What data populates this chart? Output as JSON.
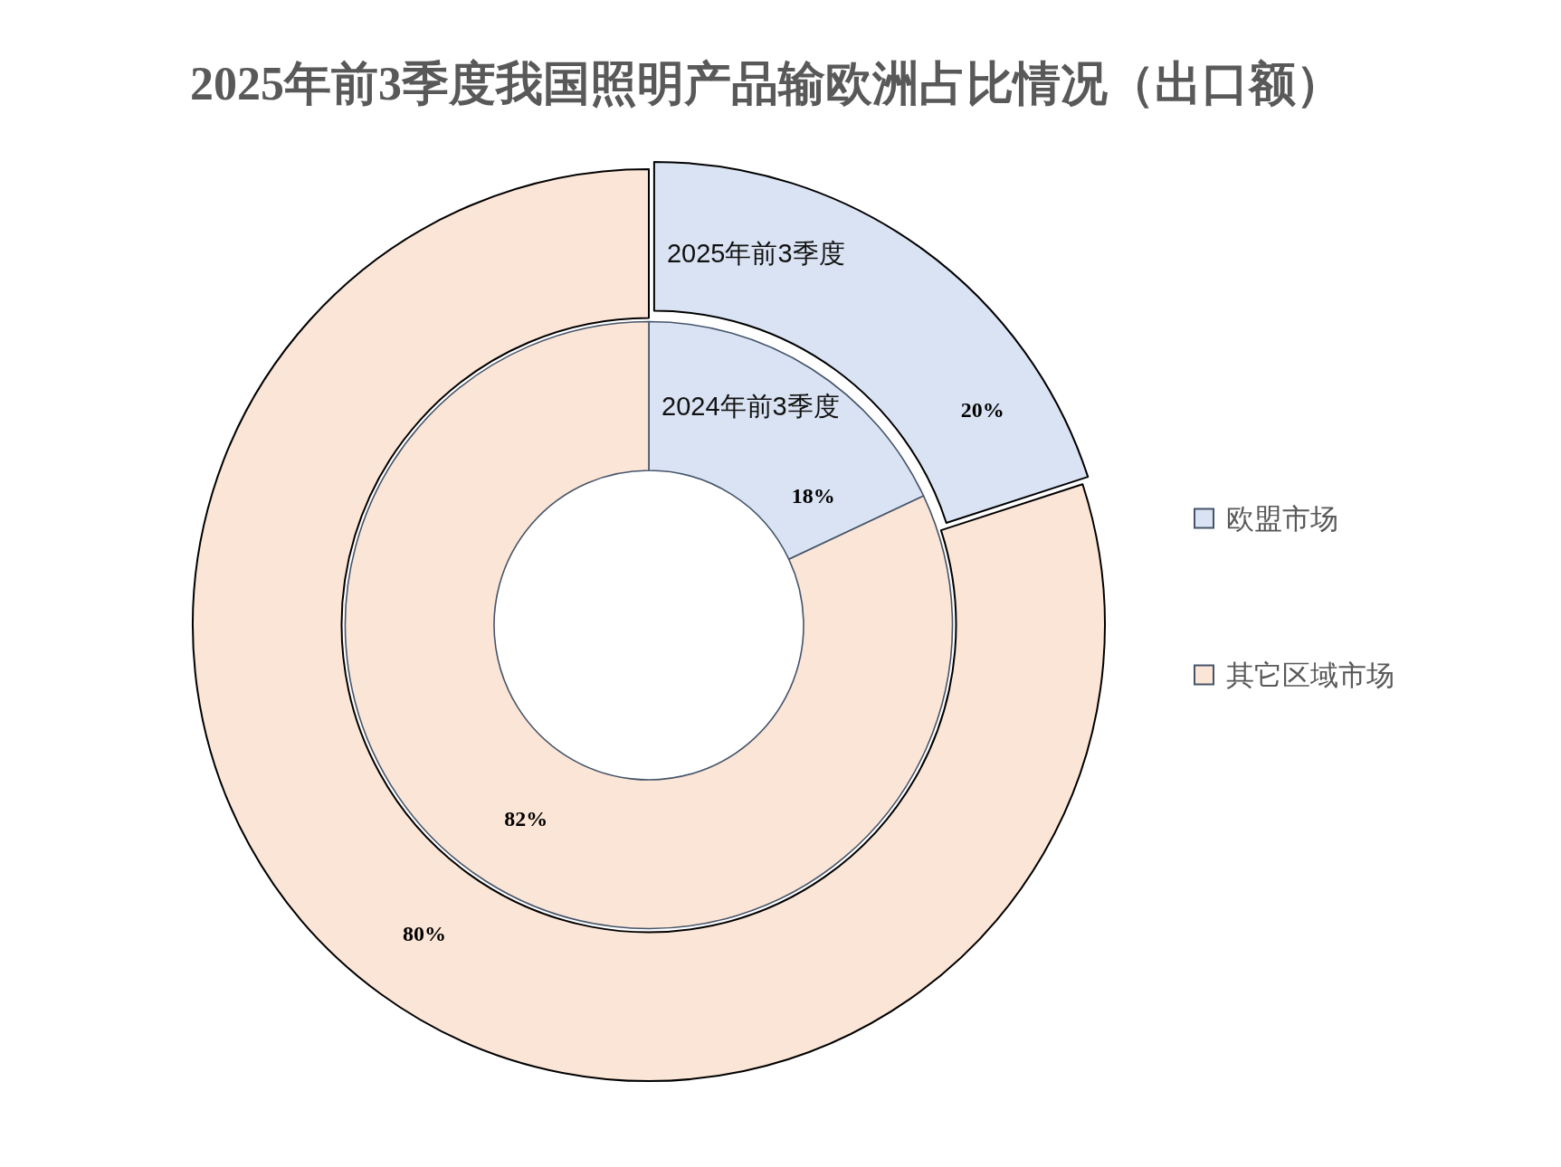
{
  "chart_data": {
    "type": "donut",
    "title": "2025年前3季度我国照明产品输欧洲占比情况（出口额）",
    "categories": [
      "欧盟市场",
      "其它区域市场"
    ],
    "colors": [
      "#dae3f3",
      "#fbe5d6"
    ],
    "series": [
      {
        "name": "2024年前3季度",
        "values": [
          18,
          82
        ],
        "value_labels": [
          "18%",
          "82%"
        ]
      },
      {
        "name": "2025年前3季度",
        "values": [
          20,
          80
        ],
        "value_labels": [
          "20%",
          "80%"
        ]
      }
    ],
    "legend": "right"
  }
}
